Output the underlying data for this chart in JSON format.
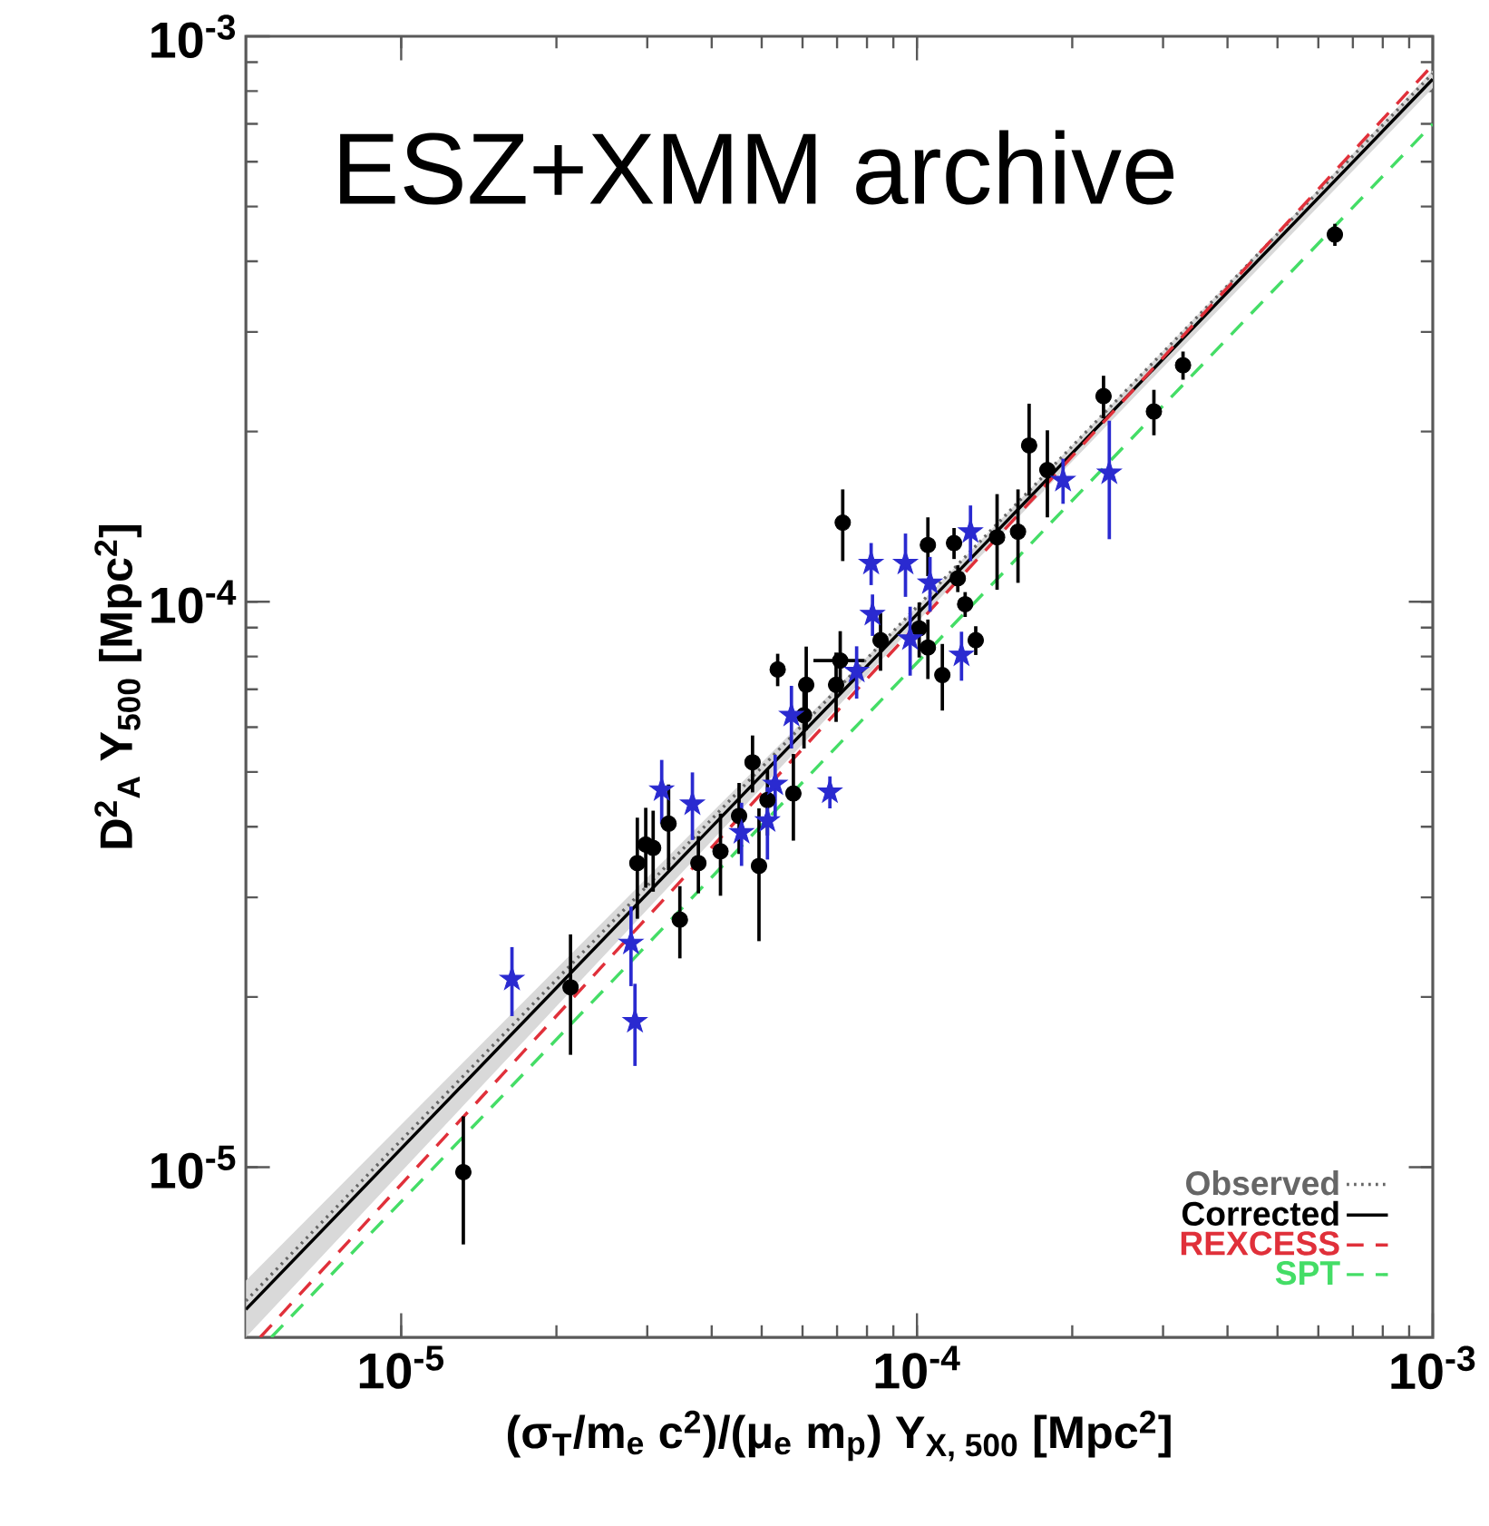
{
  "chart_data": {
    "type": "line",
    "xlabel": "(σ$_{T}$/m$_{e}$ c$^{2}$)/(μ$_{e}$ m$_{p}$) Y$_{X, 500}$ [Mpc$^{2}$]",
    "ylabel": "D$^{2}$$_{A}$ Y$_{500}$ [Mpc$^{2}$]",
    "annotations": [
      "ESZ+XMM archive"
    ],
    "log": "xy",
    "legend": "bottom right",
    "xlim": [
      5e-06,
      0.001
    ],
    "ylim": [
      5e-06,
      0.001
    ],
    "xticks": [
      {
        "value": 1e-05,
        "label": "10$^{-5}$"
      },
      {
        "value": 0.0001,
        "label": "10$^{-4}$"
      },
      {
        "value": 0.001,
        "label": "10$^{-3}$"
      }
    ],
    "yticks": [
      {
        "value": 1e-05,
        "label": "10$^{-5}$"
      },
      {
        "value": 0.0001,
        "label": "10$^{-4}$"
      },
      {
        "value": 0.001,
        "label": "10$^{-3}$"
      }
    ],
    "series": [
      {
        "name": "Observed",
        "color": "#666666",
        "line_style": "dotted",
        "x": [
          5e-06,
          0.001
        ],
        "values": [
          5.8e-06,
          0.00086
        ]
      },
      {
        "name": "Corrected",
        "color": "#000000",
        "line_style": "solid",
        "x": [
          5e-06,
          0.0001,
          0.001
        ],
        "values": [
          5.6e-06,
          9.5e-05,
          0.00084
        ],
        "lower": [
          5e-06,
          9.2e-05,
          0.00081
        ],
        "upper": [
          6.3e-06,
          9.8e-05,
          0.00087
        ]
      },
      {
        "name": "REXCESS",
        "color": "#e0303a",
        "line_style": "dashed",
        "x": [
          5.33e-06,
          0.001
        ],
        "values": [
          5e-06,
          0.00089
        ]
      },
      {
        "name": "SPT",
        "color": "#44dd66",
        "line_style": "dashed",
        "x": [
          5.6e-06,
          0.001
        ],
        "values": [
          5e-06,
          0.0007
        ]
      },
      {
        "type": "scatter",
        "color": "#000000",
        "marker": "circle",
        "x": [
          0.000646,
          0.000328,
          0.000288,
          0.00023,
          0.000165,
          0.000179,
          7.18e-05,
          0.000105,
          0.000118,
          0.000143,
          0.000157,
          0.00012,
          0.000124,
          0.00013,
          8.5e-05,
          0.000101,
          0.000105,
          0.000112,
          5.37e-05,
          6.1e-05,
          7.1e-05,
          6.97e-05,
          6.04e-05,
          4.8e-05,
          4.52e-05,
          5.13e-05,
          5.76e-05,
          3.3e-05,
          3.08e-05,
          2.98e-05,
          2.87e-05,
          3.77e-05,
          4.16e-05,
          4.94e-05,
          3.47e-05,
          2.13e-05,
          1.32e-05
        ],
        "values": [
          0.000446,
          0.000262,
          0.000217,
          0.000231,
          0.000189,
          0.000171,
          0.000138,
          0.000126,
          0.000127,
          0.00013,
          0.000133,
          0.00011,
          9.9e-05,
          8.55e-05,
          8.55e-05,
          8.97e-05,
          8.3e-05,
          7.42e-05,
          7.59e-05,
          7.13e-05,
          7.87e-05,
          7.13e-05,
          6.3e-05,
          5.2e-05,
          4.18e-05,
          4.46e-05,
          4.58e-05,
          4.05e-05,
          3.67e-05,
          3.72e-05,
          3.45e-05,
          3.45e-05,
          3.62e-05,
          3.41e-05,
          2.74e-05,
          2.08e-05,
          9.8e-06
        ],
        "errors": [
          2e-05,
          1.5e-05,
          2e-05,
          2e-05,
          3.5e-05,
          3e-05,
          2e-05,
          1.5e-05,
          8e-06,
          2.5e-05,
          2.5e-05,
          6e-06,
          5e-06,
          5e-06,
          1e-05,
          1e-05,
          1e-05,
          1e-05,
          5e-06,
          1.2e-05,
          1e-05,
          1e-05,
          8e-06,
          6e-06,
          6e-06,
          6e-06,
          8e-06,
          7e-06,
          6e-06,
          6e-06,
          7e-06,
          4e-06,
          6e-06,
          9e-06,
          4e-06,
          5e-06,
          2.5e-06
        ],
        "xerrors": [
          null,
          null,
          null,
          null,
          null,
          null,
          null,
          null,
          null,
          null,
          null,
          null,
          null,
          null,
          null,
          null,
          null,
          null,
          null,
          null,
          8e-06,
          null,
          null,
          null,
          null,
          null,
          null,
          null,
          null,
          null,
          null,
          null,
          null,
          null,
          null,
          null,
          null
        ]
      },
      {
        "type": "scatter",
        "color": "#2a2ad0",
        "marker": "star",
        "x": [
          8.15e-05,
          9.5e-05,
          0.000127,
          0.000106,
          8.2e-05,
          9.7e-05,
          0.000122,
          7.64e-05,
          5.71e-05,
          3.2e-05,
          3.67e-05,
          5.31e-05,
          4.57e-05,
          5.13e-05,
          6.78e-05,
          2.79e-05,
          1.64e-05,
          2.84e-05,
          0.000192,
          0.000236
        ],
        "values": [
          0.000117,
          0.000117,
          0.000133,
          0.000108,
          9.5e-05,
          8.6e-05,
          8.05e-05,
          7.54e-05,
          6.3e-05,
          4.65e-05,
          4.39e-05,
          4.76e-05,
          3.91e-05,
          4.1e-05,
          4.61e-05,
          2.49e-05,
          2.15e-05,
          1.81e-05,
          0.000164,
          0.000169
        ],
        "errors": [
          1e-05,
          1.5e-05,
          1.5e-05,
          1.2e-05,
          8e-06,
          1.2e-05,
          8e-06,
          8e-06,
          8e-06,
          6e-06,
          6e-06,
          6e-06,
          5e-06,
          6e-06,
          3e-06,
          4e-06,
          3e-06,
          3e-06,
          1.5e-05,
          4e-05
        ]
      }
    ]
  }
}
